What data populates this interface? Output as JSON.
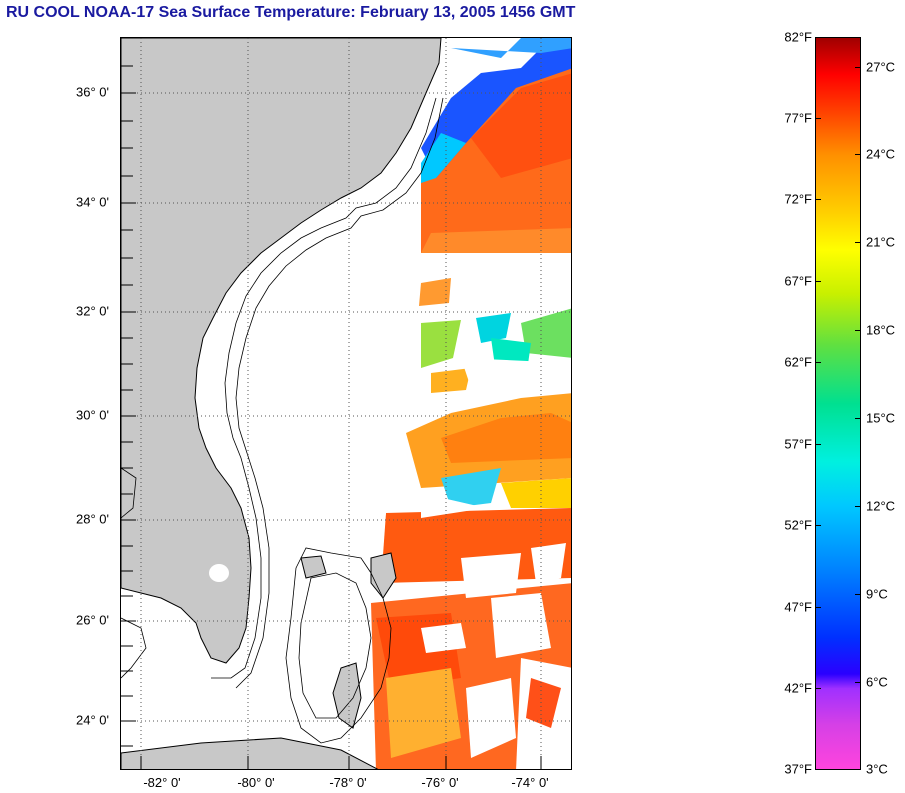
{
  "title": "RU COOL  NOAA-17  Sea Surface Temperature:  February 13, 2005 1456 GMT",
  "map": {
    "lat_labels": [
      "36° 0'",
      "34° 0'",
      "32° 0'",
      "30° 0'",
      "28° 0'",
      "26° 0'",
      "24° 0'"
    ],
    "lon_labels": [
      "-82° 0'",
      "-80° 0'",
      "-78° 0'",
      "-76° 0'",
      "-74° 0'"
    ],
    "colors": {
      "land": "#c8c8c8",
      "no_data": "#ffffff",
      "grid": "#555555"
    }
  },
  "colorbar": {
    "fahrenheit_labels": [
      "82°F",
      "77°F",
      "72°F",
      "67°F",
      "62°F",
      "57°F",
      "52°F",
      "47°F",
      "42°F",
      "37°F"
    ],
    "celsius_labels": [
      "27°C",
      "24°C",
      "21°C",
      "18°C",
      "15°C",
      "12°C",
      "9°C",
      "6°C",
      "3°C"
    ]
  }
}
